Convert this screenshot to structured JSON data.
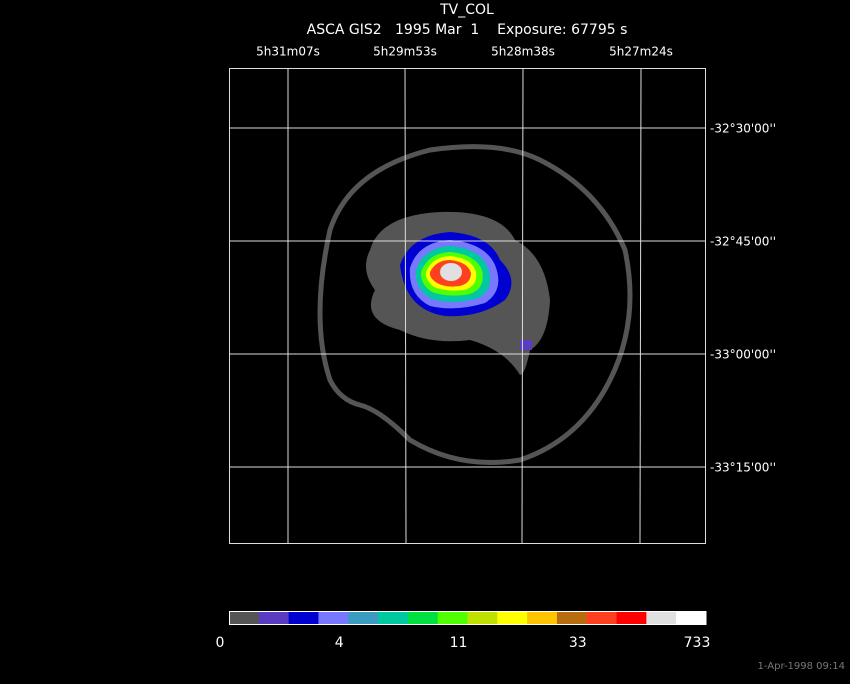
{
  "header": {
    "title": "TV_COL",
    "subtitle": "ASCA GIS2   1995 Mar  1    Exposure: 67795 s"
  },
  "ra_labels": [
    "5h31m07s",
    "5h29m53s",
    "5h28m38s",
    "5h27m24s"
  ],
  "dec_labels": [
    "-32°30'00''",
    "-32°45'00''",
    "-33°00'00''",
    "-33°15'00''"
  ],
  "colorbar": {
    "colors": [
      "#555555",
      "#5a3cc0",
      "#0000d0",
      "#7878ff",
      "#3c9cc0",
      "#00c8a0",
      "#00e040",
      "#50ff00",
      "#c0e000",
      "#ffff00",
      "#ffc400",
      "#b86c10",
      "#ff4020",
      "#ff0000",
      "#e0e0e0",
      "#ffffff"
    ],
    "labels": [
      0,
      4,
      11,
      33,
      733
    ]
  },
  "footer": "1-Apr-1998 09:14"
}
